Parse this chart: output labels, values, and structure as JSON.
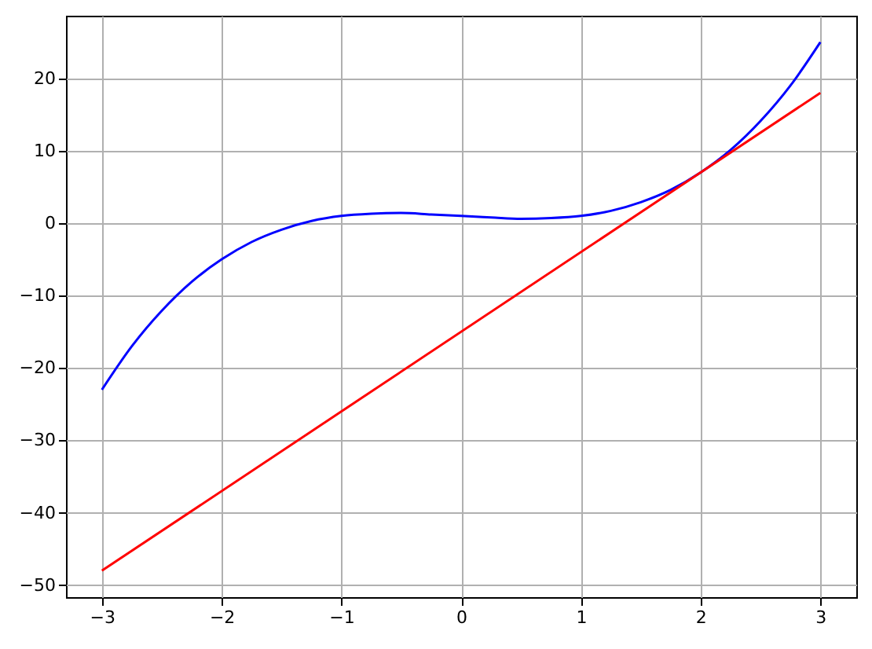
{
  "chart_data": {
    "type": "line",
    "xlim": [
      -3.3,
      3.3
    ],
    "ylim": [
      -51.65,
      28.65
    ],
    "xticks": [
      -3,
      -2,
      -1,
      0,
      1,
      2,
      3
    ],
    "yticks": [
      -50,
      -40,
      -30,
      -20,
      -10,
      0,
      10,
      20
    ],
    "grid": true,
    "line_style": "solid",
    "marker": "none",
    "series": [
      {
        "color": "#0000ff",
        "x": [
          -3,
          -2.75,
          -2.5,
          -2.25,
          -2,
          -1.75,
          -1.5,
          -1.25,
          -1,
          -0.75,
          -0.5,
          -0.25,
          0,
          0.25,
          0.5,
          0.75,
          1,
          1.25,
          1.5,
          1.75,
          2,
          2.25,
          2.5,
          2.75,
          3
        ],
        "values": [
          -23,
          -17,
          -12.1,
          -8.1,
          -5,
          -2.6,
          -0.9,
          0.3,
          1,
          1.3,
          1.4,
          1.2,
          1,
          0.8,
          0.6,
          0.7,
          1,
          1.7,
          2.9,
          4.6,
          7,
          10.1,
          14.1,
          19,
          25
        ]
      },
      {
        "color": "#ff0000",
        "x": [
          -3,
          3
        ],
        "values": [
          -48,
          18
        ]
      }
    ]
  }
}
